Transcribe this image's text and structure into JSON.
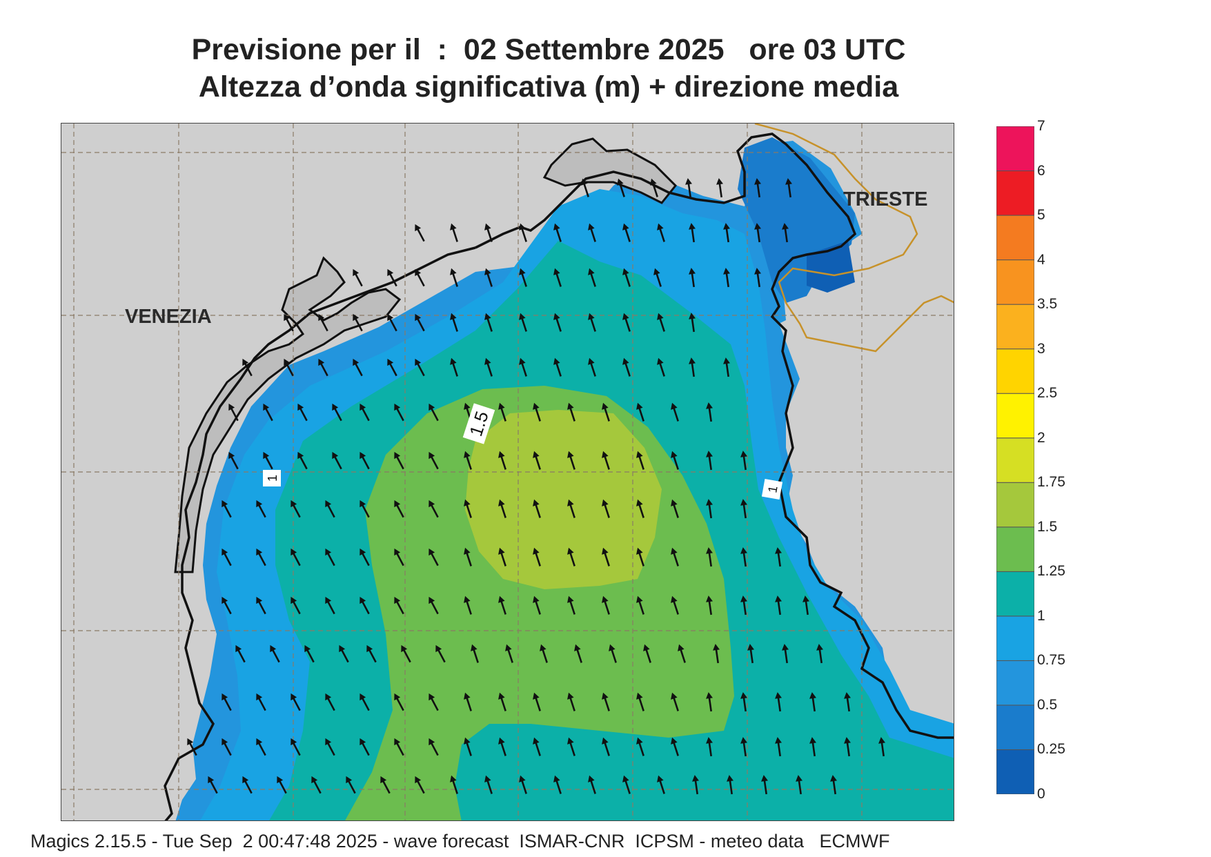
{
  "title": {
    "line1": "Previsione per il  :  02 Settembre 2025   ore 03 UTC",
    "line2": "Altezza d’onda significativa (m) + direzione media"
  },
  "map": {
    "region": "Northern Adriatic Sea",
    "land_color": "#cfcfcf",
    "cities": [
      "VENEZIA",
      "TRIESTE"
    ],
    "contour_labels": [
      "1.5",
      "1",
      "1"
    ],
    "arrow_direction": "towards north / north-north-west"
  },
  "legend": {
    "ticks": [
      "0",
      "0.25",
      "0.5",
      "0.75",
      "1",
      "1.25",
      "1.5",
      "1.75",
      "2",
      "2.5",
      "3",
      "3.5",
      "4",
      "5",
      "6",
      "7"
    ],
    "colors": [
      "#0f5fb4",
      "#1a7ccc",
      "#2395dd",
      "#19a3e3",
      "#0cb0a8",
      "#6cbd4f",
      "#a5c83c",
      "#d6df23",
      "#fff200",
      "#ffd400",
      "#fbb11e",
      "#f8931f",
      "#f47b20",
      "#ed1c24",
      "#ed145b"
    ]
  },
  "footer": "Magics 2.15.5 - Tue Sep  2 00:47:48 2025 - wave forecast  ISMAR-CNR  ICPSM - meteo data   ECMWF"
}
